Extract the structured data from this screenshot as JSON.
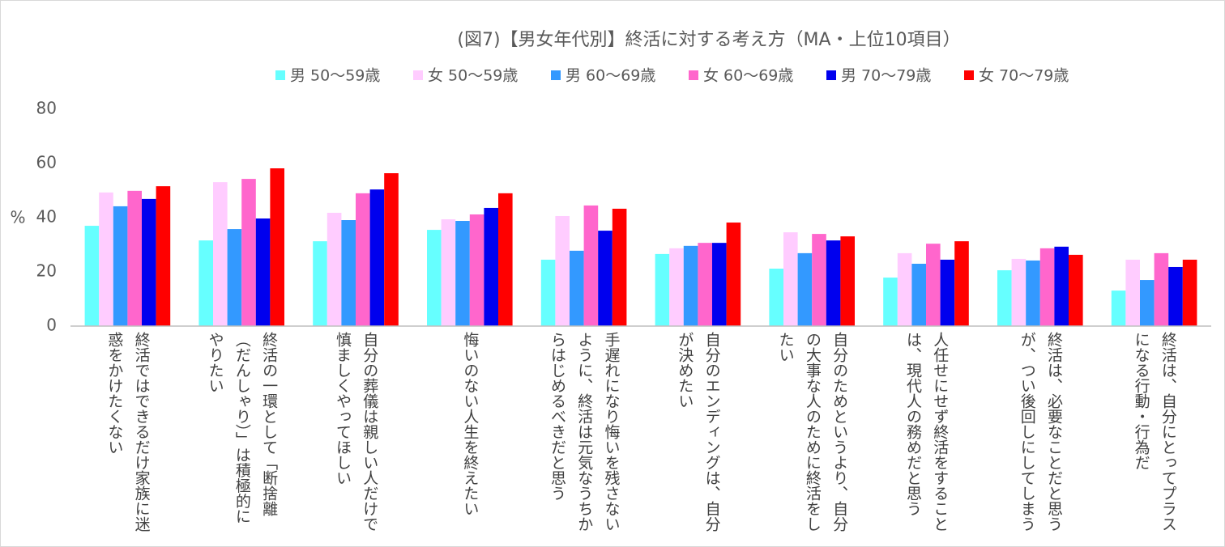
{
  "chart_data": {
    "type": "bar",
    "title": "(図7)【男女年代別】終活に対する考え方（MA・上位10項目）",
    "ylabel": "%",
    "ylim": [
      0,
      80
    ],
    "yticks": [
      0,
      20,
      40,
      60,
      80
    ],
    "categories": [
      "終活ではできるだけ家族に迷惑をかけたくない",
      "終活の一環として「断捨離（だんしゃり）」は積極的にやりたい",
      "自分の葬儀は親しい人だけで慎ましくやってほしい",
      "悔いのない人生を終えたい",
      "手遅れになり悔いを残さないように、終活は元気なうちからはじめるべきだと思う",
      "自分のエンディングは、自分が決めたい",
      "自分のためというより、自分の大事な人のために終活をしたい",
      "人任せにせず終活をすることは、現代人の務めだと思う",
      "終活は、必要なことだと思うが、つい後回しにしてしまう",
      "終活は、自分にとってプラスになる行動・行為だ"
    ],
    "series": [
      {
        "name": "男 50～59歳",
        "color": "#66ffff",
        "values": [
          37.0,
          31.6,
          31.3,
          35.5,
          24.5,
          26.6,
          21.2,
          17.9,
          20.6,
          13.1
        ]
      },
      {
        "name": "女 50～59歳",
        "color": "#ffccff",
        "values": [
          49.3,
          53.1,
          41.8,
          39.4,
          40.6,
          28.7,
          34.6,
          26.9,
          24.8,
          24.5
        ]
      },
      {
        "name": "男 60～69歳",
        "color": "#3399ff",
        "values": [
          44.2,
          35.8,
          39.1,
          38.8,
          27.8,
          29.6,
          26.9,
          23.0,
          24.2,
          17.0
        ]
      },
      {
        "name": "女 60～69歳",
        "color": "#ff66cc",
        "values": [
          49.9,
          54.3,
          49.0,
          41.2,
          44.5,
          30.7,
          34.0,
          30.4,
          28.7,
          26.9
        ]
      },
      {
        "name": "男 70～79歳",
        "color": "#0000ee",
        "values": [
          46.9,
          39.7,
          50.4,
          43.6,
          35.2,
          30.7,
          31.6,
          24.5,
          29.3,
          21.8
        ]
      },
      {
        "name": "女 70～79歳",
        "color": "#ff0000",
        "values": [
          51.6,
          58.2,
          56.4,
          49.0,
          43.3,
          38.2,
          33.1,
          31.3,
          26.3,
          24.5
        ]
      }
    ]
  }
}
